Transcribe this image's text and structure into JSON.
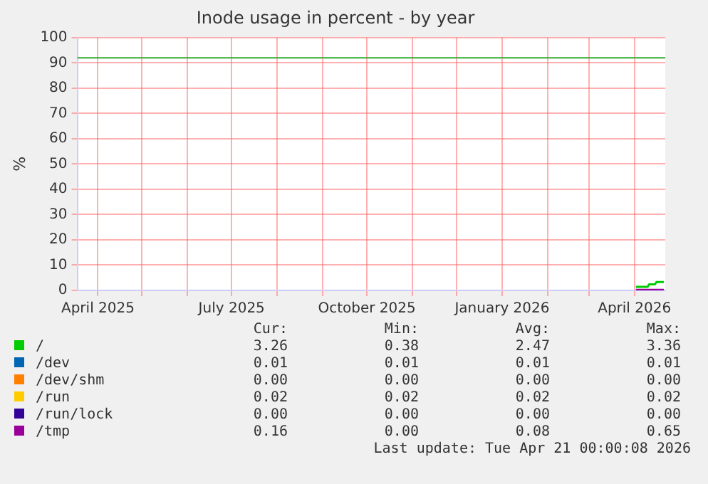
{
  "chart_data": {
    "type": "line",
    "title": "Inode usage in percent - by year",
    "ylabel": "%",
    "xlim": [
      "2025-03-18",
      "2026-04-22"
    ],
    "xticks": [
      {
        "value": "2025-04-01",
        "label": "April 2025"
      },
      {
        "value": "2025-05-01",
        "label": null
      },
      {
        "value": "2025-06-01",
        "label": null
      },
      {
        "value": "2025-07-01",
        "label": "July 2025"
      },
      {
        "value": "2025-08-01",
        "label": null
      },
      {
        "value": "2025-09-01",
        "label": null
      },
      {
        "value": "2025-10-01",
        "label": "October 2025"
      },
      {
        "value": "2025-11-01",
        "label": null
      },
      {
        "value": "2025-12-01",
        "label": null
      },
      {
        "value": "2026-01-01",
        "label": "January 2026"
      },
      {
        "value": "2026-02-01",
        "label": null
      },
      {
        "value": "2026-03-01",
        "label": null
      },
      {
        "value": "2026-04-01",
        "label": "April 2026"
      }
    ],
    "ylim": [
      0,
      100
    ],
    "yticks": [
      0,
      10,
      20,
      30,
      40,
      50,
      60,
      70,
      80,
      90,
      100
    ],
    "grid": true,
    "legend": "bottom",
    "ref_lines": [
      {
        "axis": "y",
        "value": 92,
        "color": "#33aa33"
      }
    ],
    "series": [
      {
        "name": "/",
        "color": "#00cc00",
        "x": [
          "2026-04-02",
          "2026-04-10",
          "2026-04-11",
          "2026-04-15",
          "2026-04-16",
          "2026-04-21"
        ],
        "values": [
          1.4,
          1.4,
          2.4,
          2.4,
          3.3,
          3.3
        ]
      },
      {
        "name": "/dev",
        "color": "#0066b3"
      },
      {
        "name": "/dev/shm",
        "color": "#ff8000"
      },
      {
        "name": "/run",
        "color": "#ffcc00"
      },
      {
        "name": "/run/lock",
        "color": "#330099"
      },
      {
        "name": "/tmp",
        "color": "#990099",
        "x": [
          "2026-04-02",
          "2026-04-21"
        ],
        "values": [
          0.2,
          0.2
        ]
      }
    ],
    "annotations": [
      "Cur:",
      "Min:",
      "Avg:",
      "Max:",
      "3.26",
      "0.38",
      "2.47",
      "3.36",
      "0.01",
      "0.01",
      "0.01",
      "0.01",
      "0.00",
      "0.00",
      "0.00",
      "0.00",
      "0.02",
      "0.02",
      "0.02",
      "0.02",
      "0.00",
      "0.00",
      "0.00",
      "0.00",
      "0.16",
      "0.00",
      "0.08",
      "0.65",
      "Last update: Tue Apr 21 00:00:08 2026"
    ]
  }
}
